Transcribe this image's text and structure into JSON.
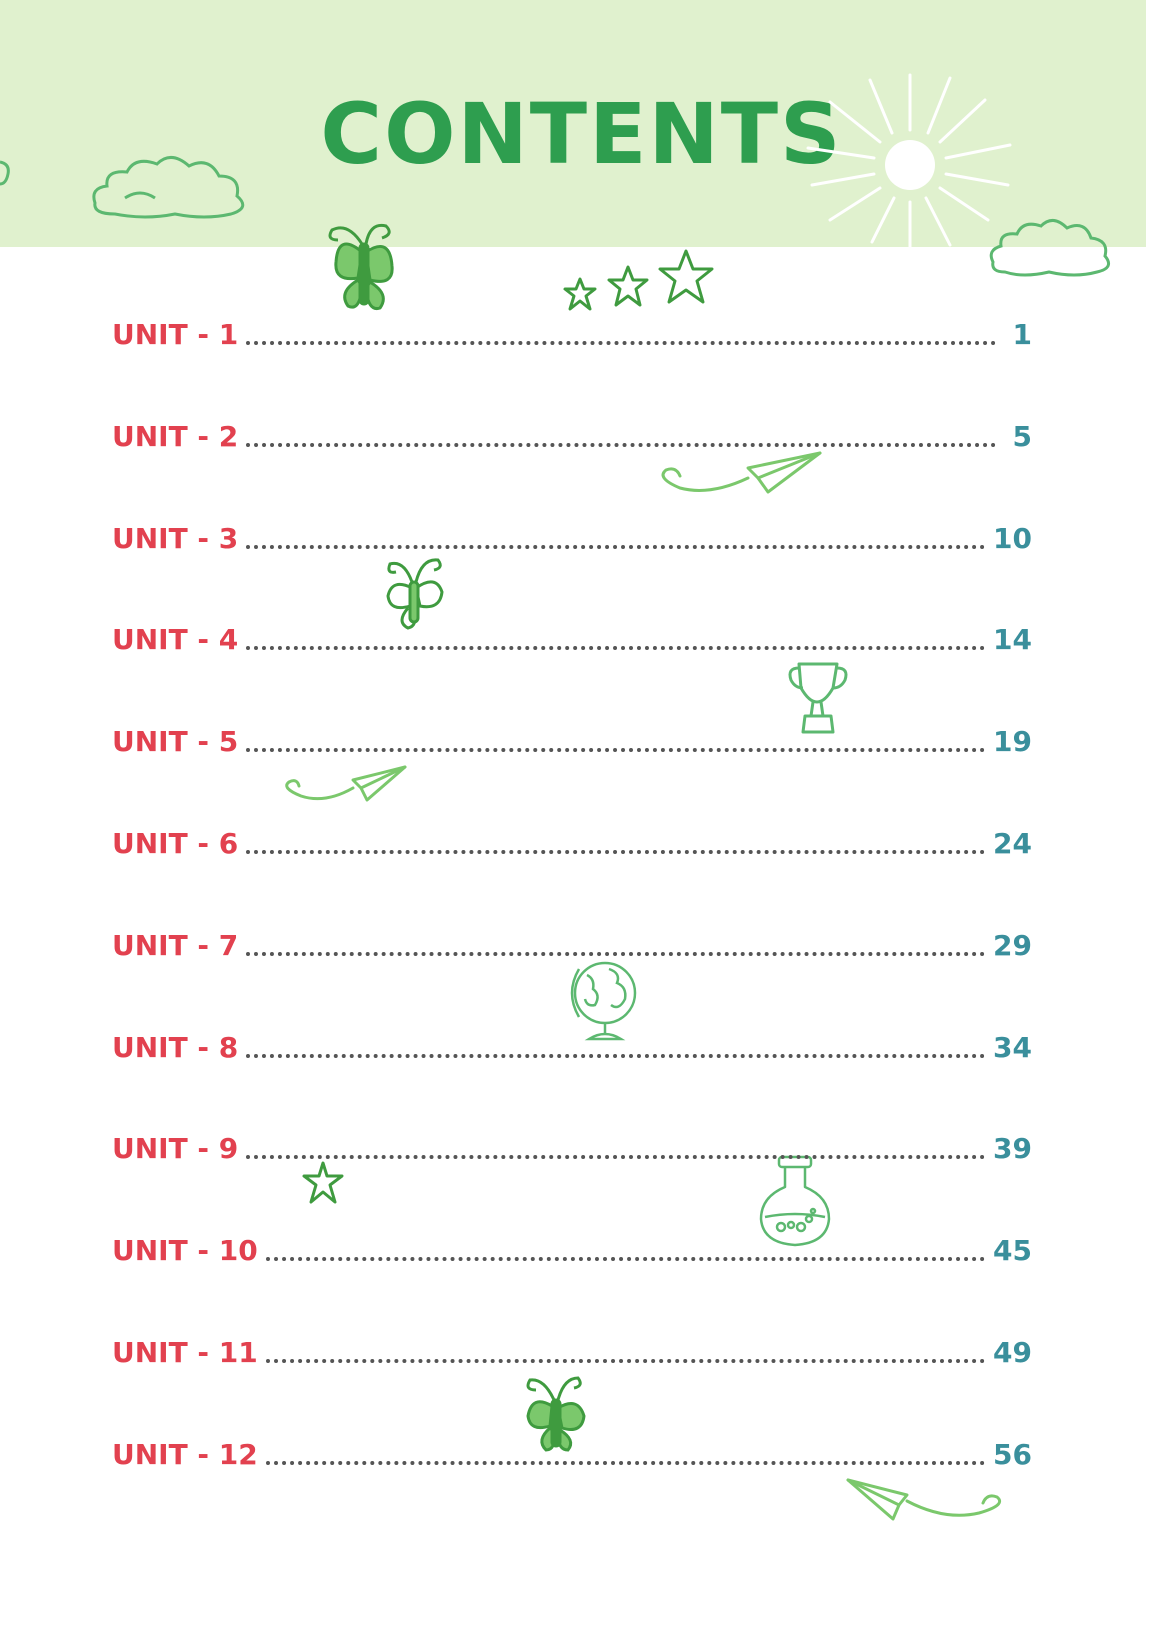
{
  "title": "CONTENTS",
  "colors": {
    "header_band": "#e0f1ce",
    "title": "#2e9e4f",
    "unit_label": "#e2414f",
    "page_number": "#3a8f9c",
    "leader_dots": "#555555",
    "doodles": "#5cb85c"
  },
  "decorations": [
    "cloud-icon",
    "sun-icon",
    "butterfly-icon",
    "star-icon",
    "paper-plane-icon",
    "trophy-icon",
    "globe-icon",
    "flask-icon"
  ],
  "toc": [
    {
      "label": "UNIT - 1",
      "page": "1"
    },
    {
      "label": "UNIT - 2",
      "page": "5"
    },
    {
      "label": "UNIT - 3",
      "page": "10"
    },
    {
      "label": "UNIT - 4",
      "page": "14"
    },
    {
      "label": "UNIT - 5",
      "page": "19"
    },
    {
      "label": "UNIT - 6",
      "page": "24"
    },
    {
      "label": "UNIT - 7",
      "page": "29"
    },
    {
      "label": "UNIT - 8",
      "page": "34"
    },
    {
      "label": "UNIT - 9",
      "page": "39"
    },
    {
      "label": "UNIT - 10",
      "page": "45"
    },
    {
      "label": "UNIT - 11",
      "page": "49"
    },
    {
      "label": "UNIT - 12",
      "page": "56"
    }
  ]
}
